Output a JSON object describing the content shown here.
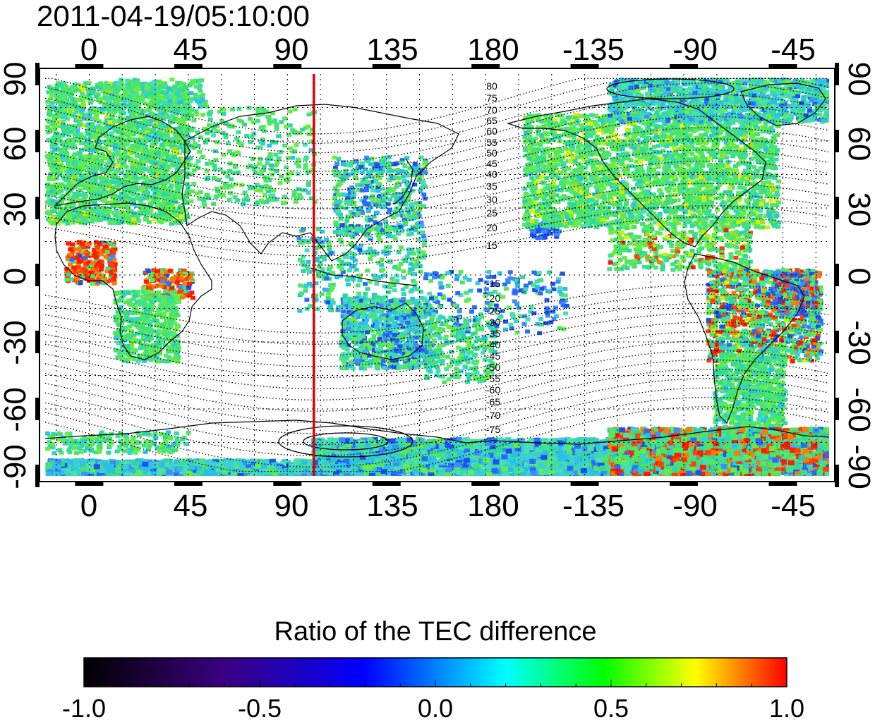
{
  "title": "2011-04-19/05:10:00",
  "top_lon_labels": [
    "0",
    "45",
    "90",
    "135",
    "180",
    "-135",
    "-90",
    "-45"
  ],
  "bottom_lon_labels": [
    "0",
    "45",
    "90",
    "135",
    "180",
    "-135",
    "-90",
    "-45"
  ],
  "left_lat_labels": [
    "90",
    "60",
    "30",
    "0",
    "-30",
    "-60",
    "-90"
  ],
  "right_lat_labels": [
    "90",
    "60",
    "30",
    "0",
    "-30",
    "-60",
    "-90"
  ],
  "contour_labels_north": [
    "80",
    "75",
    "70",
    "65",
    "60",
    "55",
    "50",
    "45",
    "40",
    "35",
    "30",
    "25",
    "20",
    "15"
  ],
  "contour_labels_south": [
    "-15",
    "-20",
    "-25",
    "-30",
    "-35",
    "-40",
    "-45",
    "-50",
    "-55",
    "-60",
    "-65",
    "-70",
    "-75"
  ],
  "colorbar": {
    "title": "Ratio of the TEC difference",
    "tick_labels": [
      "-1.0",
      "-0.5",
      "0.0",
      "0.5",
      "1.0"
    ],
    "min": -1.0,
    "max": 1.0,
    "colors": [
      "#000000",
      "#3a0080",
      "#0000ff",
      "#00ffff",
      "#00ff00",
      "#ffff00",
      "#ff0000"
    ]
  },
  "markers": {
    "meridian_longitude": 102,
    "meridian_color": "#e00000"
  },
  "colors": {
    "land_coverage": "#4de36a",
    "positive_anomaly": "#ff1a00",
    "negative_anomaly": "#2a6bff"
  }
}
